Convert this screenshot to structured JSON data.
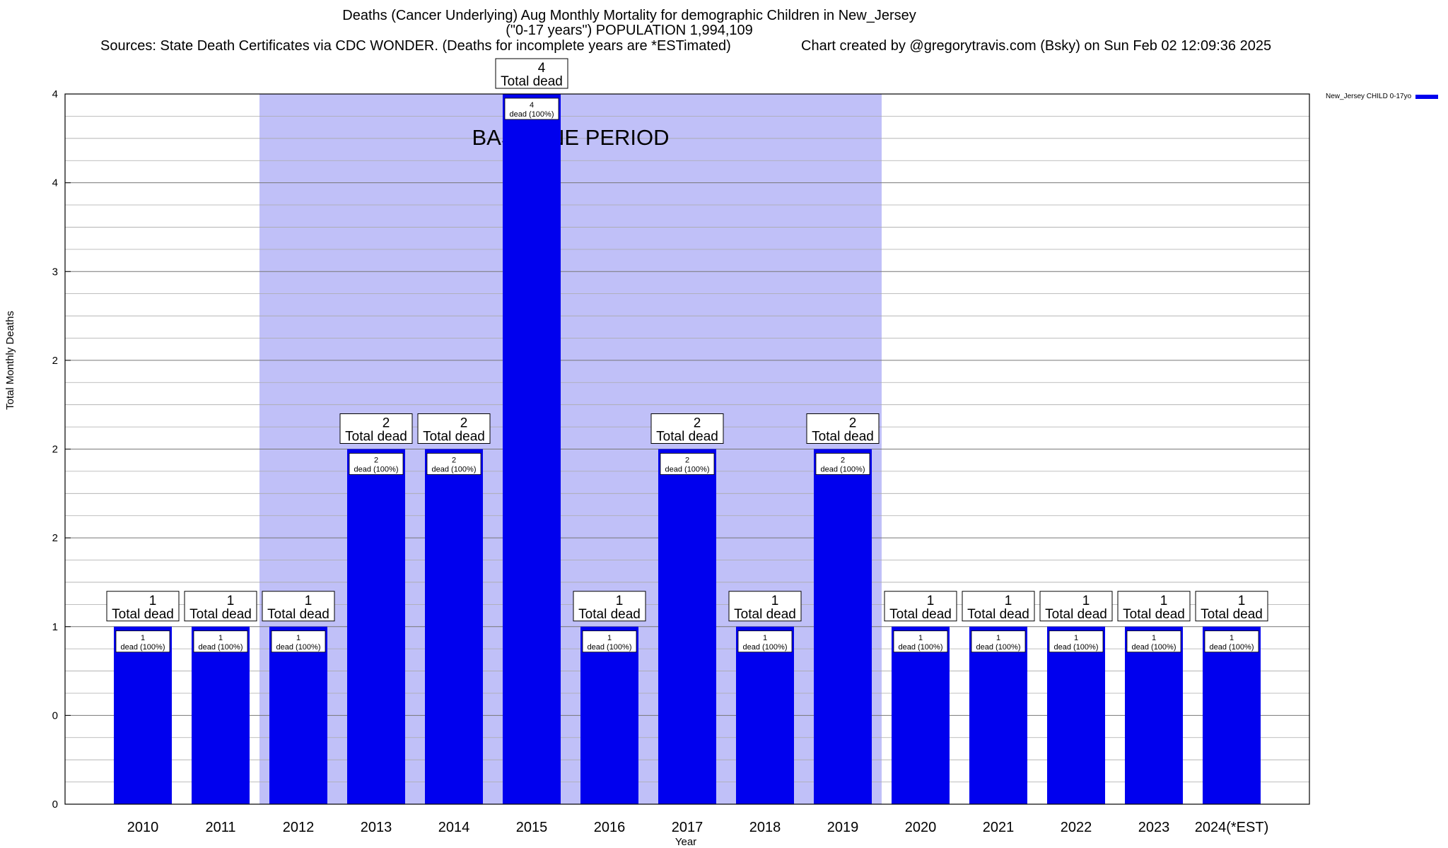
{
  "header": {
    "title_line1": "Deaths (Cancer Underlying) Aug Monthly Mortality for demographic Children in New_Jersey",
    "title_line2": "(\"0-17 years\") POPULATION 1,994,109",
    "sources": "Sources: State Death Certificates via CDC WONDER. (Deaths for incomplete years are *ESTimated)",
    "credit": "Chart created by @gregorytravis.com (Bsky) on Sun Feb 02 12:09:36 2025"
  },
  "legend": {
    "label": "New_Jersey CHILD 0-17yo",
    "color": "#0000ee"
  },
  "colors": {
    "bar": "#0000ee",
    "baseline_band": "#c0c0f8",
    "grid": "#999999"
  },
  "chart_data": {
    "type": "bar",
    "xlabel": "Year",
    "ylabel": "Total Monthly Deaths",
    "categories": [
      "2010",
      "2011",
      "2012",
      "2013",
      "2014",
      "2015",
      "2016",
      "2017",
      "2018",
      "2019",
      "2020",
      "2021",
      "2022",
      "2023",
      "2024(*EST)"
    ],
    "series": [
      {
        "name": "New_Jersey CHILD 0-17yo",
        "values": [
          1,
          1,
          1,
          2,
          2,
          4,
          1,
          2,
          1,
          2,
          1,
          1,
          1,
          1,
          1
        ]
      }
    ],
    "ylim": [
      0,
      4
    ],
    "y_tick_labels": [
      "0",
      "0",
      "1",
      "2",
      "2",
      "2",
      "3",
      "4",
      "4"
    ],
    "total_label_suffix": "Total dead",
    "inner_label_suffix": "dead (100%)",
    "baseline": {
      "label": "BASELINE PERIOD",
      "from": "2012",
      "to": "2019"
    },
    "grid": true,
    "legend_position": "top-right"
  }
}
